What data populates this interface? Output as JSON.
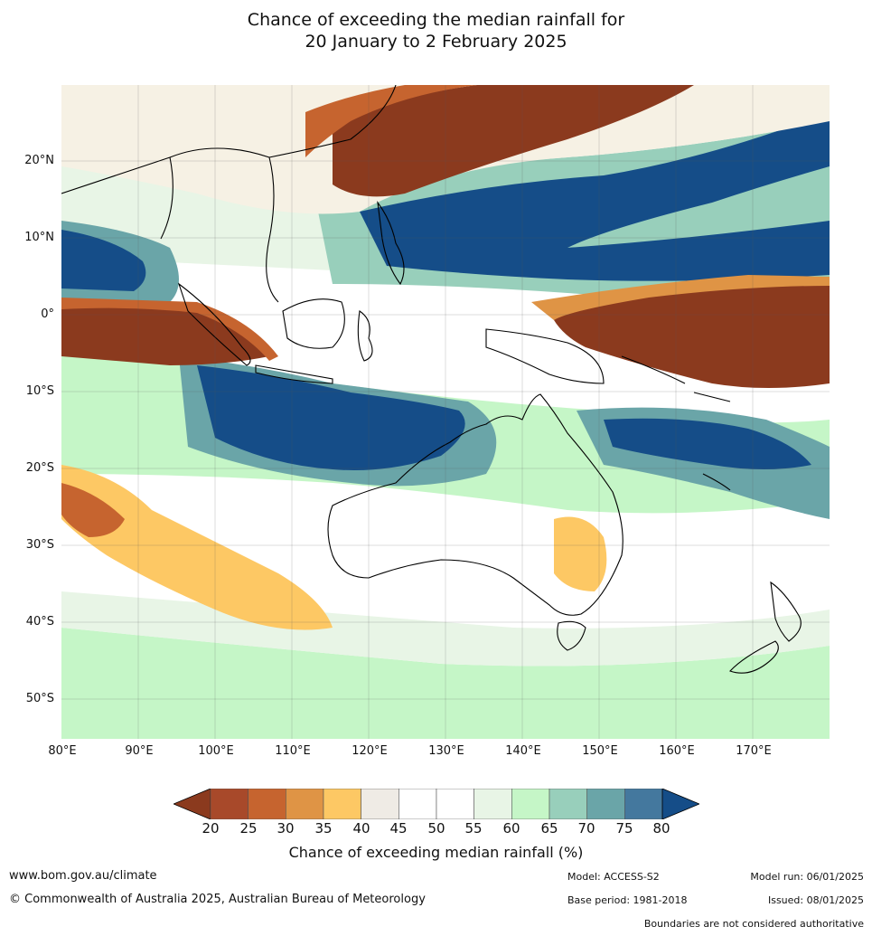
{
  "title_line1": "Chance of exceeding the median rainfall for",
  "title_line2": "20 January to 2 February 2025",
  "lat_labels": [
    "20°N",
    "10°N",
    "0°",
    "10°S",
    "20°S",
    "30°S",
    "40°S",
    "50°S"
  ],
  "lon_labels": [
    "80°E",
    "90°E",
    "100°E",
    "110°E",
    "120°E",
    "130°E",
    "140°E",
    "150°E",
    "160°E",
    "170°E"
  ],
  "legend": {
    "ticks": [
      "20",
      "25",
      "30",
      "35",
      "40",
      "45",
      "50",
      "55",
      "60",
      "65",
      "70",
      "75",
      "80"
    ],
    "label": "Chance of exceeding median rainfall (%)",
    "colors": [
      "#8b3a1e",
      "#a8492a",
      "#c6642f",
      "#df9445",
      "#fdc864",
      "#efebe5",
      "#ffffff",
      "#ffffff",
      "#e8f5e6",
      "#c5f6c7",
      "#98cfbb",
      "#6aa5a8",
      "#44789e",
      "#154d88"
    ]
  },
  "footer": {
    "url": "www.bom.gov.au/climate",
    "copyright": "© Commonwealth of Australia 2025, Australian Bureau of Meteorology",
    "model": "Model: ACCESS-S2",
    "base_period": "Base period: 1981-2018",
    "model_run": "Model run: 06/01/2025",
    "issued": "Issued: 08/01/2025",
    "boundaries": "Boundaries are not considered authoritative"
  }
}
